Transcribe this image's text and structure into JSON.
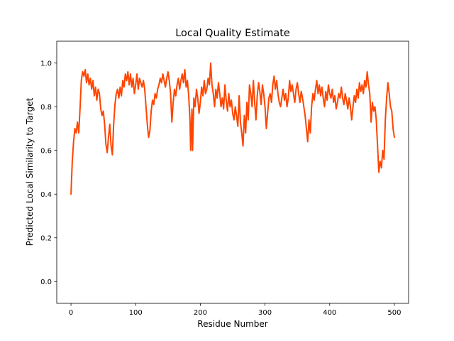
{
  "chart_data": {
    "type": "line",
    "title": "Local Quality Estimate",
    "xlabel": "Residue Number",
    "ylabel": "Predicted Local Similarity to Target",
    "xlim": [
      -22,
      522
    ],
    "ylim": [
      -0.1,
      1.1
    ],
    "xticks": [
      0,
      100,
      200,
      300,
      400,
      500
    ],
    "yticks": [
      0.0,
      0.2,
      0.4,
      0.6,
      0.8,
      1.0
    ],
    "xtick_labels": [
      "0",
      "100",
      "200",
      "300",
      "400",
      "500"
    ],
    "ytick_labels": [
      "0.0",
      "0.2",
      "0.4",
      "0.6",
      "0.8",
      "1.0"
    ],
    "grid": false,
    "legend": "none",
    "series": [
      {
        "color": "#ff4500",
        "points": [
          [
            0,
            0.4
          ],
          [
            2,
            0.55
          ],
          [
            4,
            0.64
          ],
          [
            6,
            0.7
          ],
          [
            8,
            0.68
          ],
          [
            10,
            0.73
          ],
          [
            12,
            0.68
          ],
          [
            14,
            0.79
          ],
          [
            16,
            0.92
          ],
          [
            18,
            0.96
          ],
          [
            20,
            0.94
          ],
          [
            22,
            0.97
          ],
          [
            24,
            0.91
          ],
          [
            26,
            0.95
          ],
          [
            28,
            0.9
          ],
          [
            30,
            0.93
          ],
          [
            32,
            0.88
          ],
          [
            34,
            0.92
          ],
          [
            36,
            0.85
          ],
          [
            38,
            0.89
          ],
          [
            40,
            0.83
          ],
          [
            42,
            0.88
          ],
          [
            44,
            0.86
          ],
          [
            46,
            0.79
          ],
          [
            48,
            0.76
          ],
          [
            50,
            0.78
          ],
          [
            52,
            0.72
          ],
          [
            54,
            0.63
          ],
          [
            56,
            0.59
          ],
          [
            58,
            0.66
          ],
          [
            60,
            0.72
          ],
          [
            62,
            0.62
          ],
          [
            64,
            0.58
          ],
          [
            66,
            0.72
          ],
          [
            68,
            0.81
          ],
          [
            70,
            0.86
          ],
          [
            72,
            0.88
          ],
          [
            74,
            0.84
          ],
          [
            76,
            0.89
          ],
          [
            78,
            0.85
          ],
          [
            80,
            0.92
          ],
          [
            82,
            0.89
          ],
          [
            84,
            0.95
          ],
          [
            86,
            0.92
          ],
          [
            88,
            0.96
          ],
          [
            90,
            0.9
          ],
          [
            92,
            0.95
          ],
          [
            94,
            0.89
          ],
          [
            96,
            0.93
          ],
          [
            98,
            0.86
          ],
          [
            100,
            0.9
          ],
          [
            102,
            0.95
          ],
          [
            104,
            0.88
          ],
          [
            106,
            0.93
          ],
          [
            108,
            0.91
          ],
          [
            110,
            0.89
          ],
          [
            112,
            0.92
          ],
          [
            114,
            0.88
          ],
          [
            116,
            0.8
          ],
          [
            118,
            0.72
          ],
          [
            120,
            0.66
          ],
          [
            122,
            0.69
          ],
          [
            124,
            0.78
          ],
          [
            126,
            0.83
          ],
          [
            128,
            0.81
          ],
          [
            130,
            0.86
          ],
          [
            132,
            0.84
          ],
          [
            134,
            0.88
          ],
          [
            136,
            0.9
          ],
          [
            138,
            0.93
          ],
          [
            140,
            0.91
          ],
          [
            142,
            0.95
          ],
          [
            144,
            0.92
          ],
          [
            146,
            0.89
          ],
          [
            148,
            0.93
          ],
          [
            150,
            0.96
          ],
          [
            152,
            0.92
          ],
          [
            154,
            0.86
          ],
          [
            156,
            0.73
          ],
          [
            158,
            0.82
          ],
          [
            160,
            0.88
          ],
          [
            162,
            0.85
          ],
          [
            164,
            0.9
          ],
          [
            166,
            0.93
          ],
          [
            168,
            0.88
          ],
          [
            170,
            0.92
          ],
          [
            172,
            0.95
          ],
          [
            174,
            0.91
          ],
          [
            176,
            0.97
          ],
          [
            178,
            0.89
          ],
          [
            180,
            0.92
          ],
          [
            182,
            0.85
          ],
          [
            184,
            0.74
          ],
          [
            185,
            0.6
          ],
          [
            187,
            0.79
          ],
          [
            188,
            0.6
          ],
          [
            190,
            0.84
          ],
          [
            192,
            0.8
          ],
          [
            194,
            0.88
          ],
          [
            196,
            0.84
          ],
          [
            198,
            0.77
          ],
          [
            200,
            0.82
          ],
          [
            202,
            0.89
          ],
          [
            204,
            0.85
          ],
          [
            206,
            0.92
          ],
          [
            208,
            0.86
          ],
          [
            210,
            0.88
          ],
          [
            212,
            0.93
          ],
          [
            214,
            0.9
          ],
          [
            216,
            1.0
          ],
          [
            218,
            0.9
          ],
          [
            220,
            0.86
          ],
          [
            222,
            0.8
          ],
          [
            224,
            0.88
          ],
          [
            226,
            0.84
          ],
          [
            228,
            0.91
          ],
          [
            230,
            0.86
          ],
          [
            232,
            0.8
          ],
          [
            234,
            0.84
          ],
          [
            236,
            0.79
          ],
          [
            238,
            0.9
          ],
          [
            240,
            0.83
          ],
          [
            242,
            0.78
          ],
          [
            244,
            0.86
          ],
          [
            246,
            0.8
          ],
          [
            248,
            0.83
          ],
          [
            250,
            0.77
          ],
          [
            252,
            0.74
          ],
          [
            254,
            0.8
          ],
          [
            256,
            0.76
          ],
          [
            258,
            0.71
          ],
          [
            260,
            0.85
          ],
          [
            262,
            0.73
          ],
          [
            264,
            0.68
          ],
          [
            266,
            0.62
          ],
          [
            268,
            0.76
          ],
          [
            270,
            0.68
          ],
          [
            272,
            0.82
          ],
          [
            274,
            0.74
          ],
          [
            276,
            0.9
          ],
          [
            278,
            0.86
          ],
          [
            280,
            0.8
          ],
          [
            282,
            0.92
          ],
          [
            284,
            0.82
          ],
          [
            286,
            0.74
          ],
          [
            288,
            0.85
          ],
          [
            290,
            0.91
          ],
          [
            292,
            0.87
          ],
          [
            294,
            0.81
          ],
          [
            296,
            0.9
          ],
          [
            298,
            0.86
          ],
          [
            300,
            0.8
          ],
          [
            302,
            0.7
          ],
          [
            304,
            0.77
          ],
          [
            306,
            0.84
          ],
          [
            308,
            0.86
          ],
          [
            310,
            0.82
          ],
          [
            312,
            0.9
          ],
          [
            314,
            0.94
          ],
          [
            316,
            0.88
          ],
          [
            318,
            0.92
          ],
          [
            320,
            0.86
          ],
          [
            322,
            0.82
          ],
          [
            324,
            0.8
          ],
          [
            326,
            0.84
          ],
          [
            328,
            0.88
          ],
          [
            330,
            0.83
          ],
          [
            332,
            0.86
          ],
          [
            334,
            0.8
          ],
          [
            336,
            0.84
          ],
          [
            338,
            0.92
          ],
          [
            340,
            0.87
          ],
          [
            342,
            0.9
          ],
          [
            344,
            0.86
          ],
          [
            346,
            0.82
          ],
          [
            348,
            0.88
          ],
          [
            350,
            0.91
          ],
          [
            352,
            0.86
          ],
          [
            354,
            0.82
          ],
          [
            356,
            0.87
          ],
          [
            358,
            0.84
          ],
          [
            360,
            0.8
          ],
          [
            362,
            0.76
          ],
          [
            364,
            0.7
          ],
          [
            366,
            0.64
          ],
          [
            368,
            0.74
          ],
          [
            370,
            0.68
          ],
          [
            372,
            0.8
          ],
          [
            374,
            0.86
          ],
          [
            376,
            0.83
          ],
          [
            378,
            0.88
          ],
          [
            380,
            0.92
          ],
          [
            382,
            0.86
          ],
          [
            384,
            0.9
          ],
          [
            386,
            0.85
          ],
          [
            388,
            0.89
          ],
          [
            390,
            0.84
          ],
          [
            392,
            0.8
          ],
          [
            394,
            0.87
          ],
          [
            396,
            0.83
          ],
          [
            398,
            0.9
          ],
          [
            400,
            0.86
          ],
          [
            402,
            0.84
          ],
          [
            404,
            0.88
          ],
          [
            406,
            0.82
          ],
          [
            408,
            0.85
          ],
          [
            410,
            0.79
          ],
          [
            412,
            0.82
          ],
          [
            414,
            0.86
          ],
          [
            416,
            0.84
          ],
          [
            418,
            0.89
          ],
          [
            420,
            0.84
          ],
          [
            422,
            0.81
          ],
          [
            424,
            0.86
          ],
          [
            426,
            0.83
          ],
          [
            428,
            0.79
          ],
          [
            430,
            0.84
          ],
          [
            432,
            0.8
          ],
          [
            434,
            0.74
          ],
          [
            436,
            0.8
          ],
          [
            438,
            0.85
          ],
          [
            440,
            0.82
          ],
          [
            442,
            0.88
          ],
          [
            444,
            0.84
          ],
          [
            446,
            0.91
          ],
          [
            448,
            0.87
          ],
          [
            450,
            0.9
          ],
          [
            452,
            0.86
          ],
          [
            454,
            0.92
          ],
          [
            456,
            0.89
          ],
          [
            458,
            0.96
          ],
          [
            460,
            0.9
          ],
          [
            462,
            0.86
          ],
          [
            464,
            0.73
          ],
          [
            466,
            0.82
          ],
          [
            468,
            0.78
          ],
          [
            470,
            0.8
          ],
          [
            472,
            0.74
          ],
          [
            474,
            0.62
          ],
          [
            476,
            0.5
          ],
          [
            478,
            0.55
          ],
          [
            480,
            0.52
          ],
          [
            482,
            0.6
          ],
          [
            484,
            0.56
          ],
          [
            486,
            0.74
          ],
          [
            488,
            0.84
          ],
          [
            490,
            0.91
          ],
          [
            492,
            0.86
          ],
          [
            494,
            0.8
          ],
          [
            496,
            0.78
          ],
          [
            498,
            0.7
          ],
          [
            500,
            0.66
          ]
        ]
      }
    ]
  }
}
